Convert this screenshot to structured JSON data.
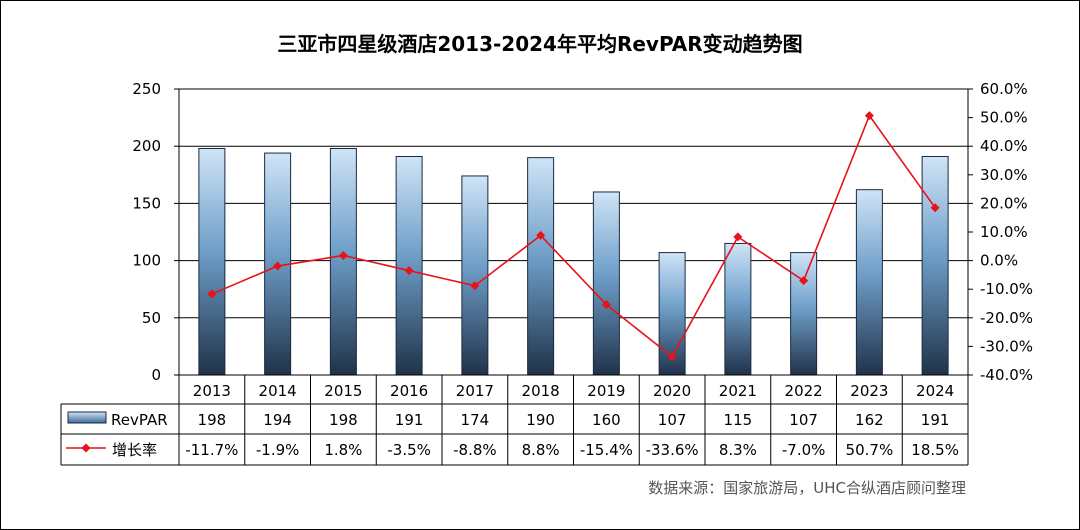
{
  "chart_data": {
    "type": "bar",
    "title": "三亚市四星级酒店2013-2024年平均RevPAR变动趋势图",
    "categories": [
      "2013",
      "2014",
      "2015",
      "2016",
      "2017",
      "2018",
      "2019",
      "2020",
      "2021",
      "2022",
      "2023",
      "2024"
    ],
    "y_left": {
      "min": 0,
      "max": 250,
      "ticks": [
        "0",
        "50",
        "100",
        "150",
        "200",
        "250"
      ]
    },
    "y_right": {
      "min": -40,
      "max": 60,
      "ticks": [
        "-40.0%",
        "-30.0%",
        "-20.0%",
        "-10.0%",
        "0.0%",
        "10.0%",
        "20.0%",
        "30.0%",
        "40.0%",
        "50.0%",
        "60.0%"
      ]
    },
    "series": [
      {
        "name": "RevPAR",
        "type": "bar",
        "axis": "left",
        "values": [
          198,
          194,
          198,
          191,
          174,
          190,
          160,
          107,
          115,
          107,
          162,
          191
        ],
        "labels": [
          "198",
          "194",
          "198",
          "191",
          "174",
          "190",
          "160",
          "107",
          "115",
          "107",
          "162",
          "191"
        ]
      },
      {
        "name": "增长率",
        "type": "line",
        "axis": "right",
        "values": [
          -11.7,
          -1.9,
          1.8,
          -3.5,
          -8.8,
          8.8,
          -15.4,
          -33.6,
          8.3,
          -7.0,
          50.7,
          18.5
        ],
        "labels": [
          "-11.7%",
          "-1.9%",
          "1.8%",
          "-3.5%",
          "-8.8%",
          "8.8%",
          "-15.4%",
          "-33.6%",
          "8.3%",
          "-7.0%",
          "50.7%",
          "18.5%"
        ]
      }
    ],
    "grid": "horizontal",
    "data_table": true
  },
  "source": "数据来源：国家旅游局，UHC合纵酒店顾问整理",
  "colors": {
    "bar_top": "#cfe4f7",
    "bar_mid": "#6f9fc9",
    "bar_bottom": "#20324a",
    "line": "#e8121b"
  }
}
